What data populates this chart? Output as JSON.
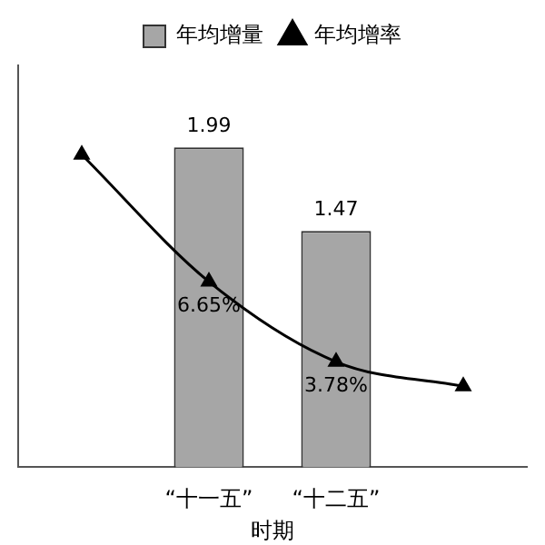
{
  "chart_data": {
    "type": "bar",
    "categories": [
      null,
      "“十一五”",
      "“十二五”",
      null
    ],
    "xlabel": "时期",
    "series": [
      {
        "name": "年均增量",
        "color": "#a6a6a6",
        "values": [
          null,
          1.99,
          1.47,
          null
        ],
        "value_labels": [
          null,
          "1.99",
          "1.47",
          null
        ]
      },
      {
        "name": "年均增率",
        "type": "line",
        "axis": "y2",
        "color": "#000000",
        "marker": "triangle",
        "values": [
          11.2,
          6.65,
          3.78,
          2.9
        ],
        "value_labels": [
          null,
          "6.65%",
          "3.78%",
          null
        ]
      }
    ],
    "ylim": [
      0,
      2.5
    ],
    "y2lim": [
      0,
      14.4
    ],
    "tick_labels": "x",
    "grid": false,
    "legend": "top"
  }
}
